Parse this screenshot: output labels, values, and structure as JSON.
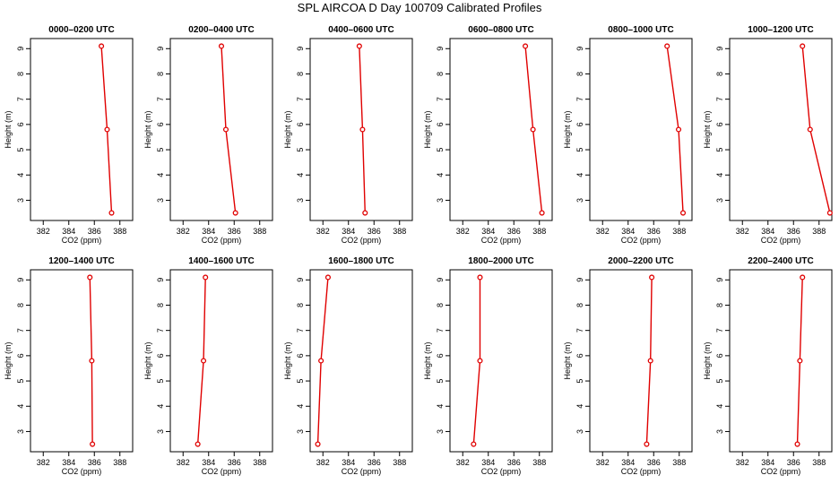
{
  "figure": {
    "title": "SPL AIRCOA D  Day 100709  Calibrated Profiles"
  },
  "chart_data": [
    {
      "type": "line",
      "title": "0000–0200 UTC",
      "xlabel": "CO2 (ppm)",
      "ylabel": "Height (m)",
      "xlim": [
        381,
        389
      ],
      "ylim": [
        2.2,
        9.4
      ],
      "x_ticks": [
        382,
        384,
        386,
        388
      ],
      "y_ticks": [
        3,
        4,
        5,
        6,
        7,
        8,
        9
      ],
      "grid": false,
      "series": [
        {
          "x": [
            387.35,
            387.0,
            386.55
          ],
          "y": [
            2.5,
            5.8,
            9.1
          ]
        }
      ]
    },
    {
      "type": "line",
      "title": "0200–0400 UTC",
      "xlabel": "CO2 (ppm)",
      "ylabel": "Height (m)",
      "xlim": [
        381,
        389
      ],
      "ylim": [
        2.2,
        9.4
      ],
      "x_ticks": [
        382,
        384,
        386,
        388
      ],
      "y_ticks": [
        3,
        4,
        5,
        6,
        7,
        8,
        9
      ],
      "grid": false,
      "series": [
        {
          "x": [
            386.1,
            385.35,
            385.0
          ],
          "y": [
            2.5,
            5.8,
            9.1
          ]
        }
      ]
    },
    {
      "type": "line",
      "title": "0400–0600 UTC",
      "xlabel": "CO2 (ppm)",
      "ylabel": "Height (m)",
      "xlim": [
        381,
        389
      ],
      "ylim": [
        2.2,
        9.4
      ],
      "x_ticks": [
        382,
        384,
        386,
        388
      ],
      "y_ticks": [
        3,
        4,
        5,
        6,
        7,
        8,
        9
      ],
      "grid": false,
      "series": [
        {
          "x": [
            385.3,
            385.1,
            384.85
          ],
          "y": [
            2.5,
            5.8,
            9.1
          ]
        }
      ]
    },
    {
      "type": "line",
      "title": "0600–0800 UTC",
      "xlabel": "CO2 (ppm)",
      "ylabel": "Height (m)",
      "xlim": [
        381,
        389
      ],
      "ylim": [
        2.2,
        9.4
      ],
      "x_ticks": [
        382,
        384,
        386,
        388
      ],
      "y_ticks": [
        3,
        4,
        5,
        6,
        7,
        8,
        9
      ],
      "grid": false,
      "series": [
        {
          "x": [
            388.2,
            387.5,
            386.9
          ],
          "y": [
            2.5,
            5.8,
            9.1
          ]
        }
      ]
    },
    {
      "type": "line",
      "title": "0800–1000 UTC",
      "xlabel": "CO2 (ppm)",
      "ylabel": "Height (m)",
      "xlim": [
        381,
        389
      ],
      "ylim": [
        2.2,
        9.4
      ],
      "x_ticks": [
        382,
        384,
        386,
        388
      ],
      "y_ticks": [
        3,
        4,
        5,
        6,
        7,
        8,
        9
      ],
      "grid": false,
      "series": [
        {
          "x": [
            388.3,
            387.95,
            387.05
          ],
          "y": [
            2.5,
            5.8,
            9.1
          ]
        }
      ]
    },
    {
      "type": "line",
      "title": "1000–1200 UTC",
      "xlabel": "CO2 (ppm)",
      "ylabel": "Height (m)",
      "xlim": [
        381,
        389
      ],
      "ylim": [
        2.2,
        9.4
      ],
      "x_ticks": [
        382,
        384,
        386,
        388
      ],
      "y_ticks": [
        3,
        4,
        5,
        6,
        7,
        8,
        9
      ],
      "grid": false,
      "series": [
        {
          "x": [
            388.85,
            387.3,
            386.7
          ],
          "y": [
            2.5,
            5.8,
            9.1
          ]
        }
      ]
    },
    {
      "type": "line",
      "title": "1200–1400 UTC",
      "xlabel": "CO2 (ppm)",
      "ylabel": "Height (m)",
      "xlim": [
        381,
        389
      ],
      "ylim": [
        2.2,
        9.4
      ],
      "x_ticks": [
        382,
        384,
        386,
        388
      ],
      "y_ticks": [
        3,
        4,
        5,
        6,
        7,
        8,
        9
      ],
      "grid": false,
      "series": [
        {
          "x": [
            385.85,
            385.8,
            385.65
          ],
          "y": [
            2.5,
            5.8,
            9.1
          ]
        }
      ]
    },
    {
      "type": "line",
      "title": "1400–1600 UTC",
      "xlabel": "CO2 (ppm)",
      "ylabel": "Height (m)",
      "xlim": [
        381,
        389
      ],
      "ylim": [
        2.2,
        9.4
      ],
      "x_ticks": [
        382,
        384,
        386,
        388
      ],
      "y_ticks": [
        3,
        4,
        5,
        6,
        7,
        8,
        9
      ],
      "grid": false,
      "series": [
        {
          "x": [
            383.15,
            383.6,
            383.75
          ],
          "y": [
            2.5,
            5.8,
            9.1
          ]
        }
      ]
    },
    {
      "type": "line",
      "title": "1600–1800 UTC",
      "xlabel": "CO2 (ppm)",
      "ylabel": "Height (m)",
      "xlim": [
        381,
        389
      ],
      "ylim": [
        2.2,
        9.4
      ],
      "x_ticks": [
        382,
        384,
        386,
        388
      ],
      "y_ticks": [
        3,
        4,
        5,
        6,
        7,
        8,
        9
      ],
      "grid": false,
      "series": [
        {
          "x": [
            381.6,
            381.85,
            382.4
          ],
          "y": [
            2.5,
            5.8,
            9.1
          ]
        }
      ]
    },
    {
      "type": "line",
      "title": "1800–2000 UTC",
      "xlabel": "CO2 (ppm)",
      "ylabel": "Height (m)",
      "xlim": [
        381,
        389
      ],
      "ylim": [
        2.2,
        9.4
      ],
      "x_ticks": [
        382,
        384,
        386,
        388
      ],
      "y_ticks": [
        3,
        4,
        5,
        6,
        7,
        8,
        9
      ],
      "grid": false,
      "series": [
        {
          "x": [
            382.85,
            383.35,
            383.35
          ],
          "y": [
            2.5,
            5.8,
            9.1
          ]
        }
      ]
    },
    {
      "type": "line",
      "title": "2000–2200 UTC",
      "xlabel": "CO2 (ppm)",
      "ylabel": "Height (m)",
      "xlim": [
        381,
        389
      ],
      "ylim": [
        2.2,
        9.4
      ],
      "x_ticks": [
        382,
        384,
        386,
        388
      ],
      "y_ticks": [
        3,
        4,
        5,
        6,
        7,
        8,
        9
      ],
      "grid": false,
      "series": [
        {
          "x": [
            385.45,
            385.75,
            385.85
          ],
          "y": [
            2.5,
            5.8,
            9.1
          ]
        }
      ]
    },
    {
      "type": "line",
      "title": "2200–2400 UTC",
      "xlabel": "CO2 (ppm)",
      "ylabel": "Height (m)",
      "xlim": [
        381,
        389
      ],
      "ylim": [
        2.2,
        9.4
      ],
      "x_ticks": [
        382,
        384,
        386,
        388
      ],
      "y_ticks": [
        3,
        4,
        5,
        6,
        7,
        8,
        9
      ],
      "grid": false,
      "series": [
        {
          "x": [
            386.3,
            386.5,
            386.7
          ],
          "y": [
            2.5,
            5.8,
            9.1
          ]
        }
      ]
    }
  ],
  "colors": {
    "series": "#e00000",
    "marker_fill": "#ffffff",
    "axes": "#000000"
  }
}
